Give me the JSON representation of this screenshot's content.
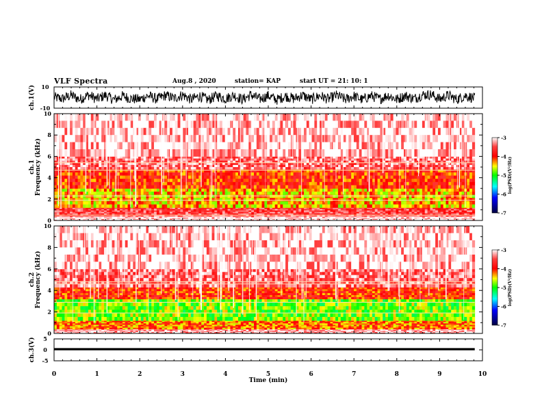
{
  "header": {
    "title": "VLF Spectra",
    "date": "Aug.8 , 2020",
    "station": "station= KAP",
    "start_ut": "start UT = 21: 10: 1"
  },
  "chart_data": [
    {
      "type": "line",
      "title": "ch.1(V)",
      "ylabel": "ch.1(V)",
      "xlim": [
        0,
        10
      ],
      "ylim": [
        -10,
        10
      ],
      "ytick_labels": [
        "10",
        "-10"
      ],
      "x_extent": [
        0,
        9.82
      ],
      "description_of_values": "noisy waveform, envelope roughly -6 to +8 V, dense oscillation",
      "series": [
        {
          "values": [
            [
              0.0,
              0.5
            ],
            [
              0.2,
              -3
            ],
            [
              0.4,
              6
            ],
            [
              0.6,
              -5
            ],
            [
              0.8,
              7
            ],
            [
              1.0,
              -4
            ],
            [
              1.2,
              6
            ],
            [
              1.4,
              -6
            ],
            [
              1.6,
              4
            ],
            [
              1.8,
              -3
            ],
            [
              2.0,
              -5
            ],
            [
              2.2,
              5
            ],
            [
              2.4,
              -4
            ],
            [
              2.6,
              6
            ],
            [
              2.8,
              -2
            ],
            [
              3.0,
              7
            ],
            [
              3.2,
              -5
            ],
            [
              3.4,
              4
            ],
            [
              3.6,
              -6
            ],
            [
              3.8,
              5
            ],
            [
              4.0,
              -3
            ],
            [
              4.2,
              6
            ],
            [
              4.4,
              -5
            ],
            [
              4.6,
              7
            ],
            [
              4.8,
              -4
            ],
            [
              5.0,
              5
            ],
            [
              5.2,
              -6
            ],
            [
              5.4,
              4
            ],
            [
              5.6,
              -3
            ],
            [
              5.8,
              6
            ],
            [
              6.0,
              -5
            ],
            [
              6.2,
              5
            ],
            [
              6.4,
              -4
            ],
            [
              6.6,
              6
            ],
            [
              6.8,
              -5
            ],
            [
              7.0,
              4
            ],
            [
              7.2,
              -6
            ],
            [
              7.4,
              5
            ],
            [
              7.6,
              -4
            ],
            [
              7.8,
              6
            ],
            [
              8.0,
              -5
            ],
            [
              8.2,
              5
            ],
            [
              8.4,
              -3
            ],
            [
              8.6,
              7
            ],
            [
              8.8,
              8
            ],
            [
              9.0,
              -4
            ],
            [
              9.2,
              6
            ],
            [
              9.4,
              -5
            ],
            [
              9.6,
              5
            ],
            [
              9.82,
              -2
            ]
          ]
        }
      ]
    },
    {
      "type": "heatmap",
      "title": "ch.1 Frequency (kHz)",
      "ylabel": "ch.1\nFrequency (kHz)",
      "xlim": [
        0,
        10
      ],
      "ylim": [
        0,
        10
      ],
      "yticks": [
        0,
        2,
        4,
        6,
        8,
        10
      ],
      "x_extent": [
        0,
        9.82
      ],
      "colorbar": {
        "label": "log(PSD)(V²/Hz)",
        "ticks": [
          -3,
          -4,
          -5,
          -6,
          -7
        ],
        "range": [
          -7,
          -3
        ]
      },
      "bands_log_psd": [
        {
          "freq_range": [
            0,
            0.4
          ],
          "value": -3.0
        },
        {
          "freq_range": [
            0.4,
            1.2
          ],
          "value": -3.6
        },
        {
          "freq_range": [
            1.2,
            3.0
          ],
          "value": -4.4
        },
        {
          "freq_range": [
            3.0,
            4.8
          ],
          "value": -4.0
        },
        {
          "freq_range": [
            4.8,
            6.0
          ],
          "value": -3.4
        },
        {
          "freq_range": [
            6.0,
            10.0
          ],
          "value": -3.1
        }
      ],
      "horizontal_lines_khz": [
        0.5,
        1.9,
        2.3,
        4.7,
        5.4
      ]
    },
    {
      "type": "heatmap",
      "title": "ch.2 Frequency (kHz)",
      "ylabel": "ch.2\nFrequency (kHz)",
      "xlim": [
        0,
        10
      ],
      "ylim": [
        0,
        10
      ],
      "yticks": [
        0,
        2,
        4,
        6,
        8,
        10
      ],
      "x_extent": [
        0,
        9.82
      ],
      "colorbar": {
        "label": "log(PSD)(V²/Hz)",
        "ticks": [
          -3,
          -4,
          -5,
          -6,
          -7
        ],
        "range": [
          -7,
          -3
        ]
      },
      "bands_log_psd": [
        {
          "freq_range": [
            0,
            0.4
          ],
          "value": -3.2
        },
        {
          "freq_range": [
            0.4,
            1.2
          ],
          "value": -4.2
        },
        {
          "freq_range": [
            1.2,
            3.2
          ],
          "value": -4.8
        },
        {
          "freq_range": [
            3.2,
            4.3
          ],
          "value": -4.0
        },
        {
          "freq_range": [
            4.3,
            6.0
          ],
          "value": -3.4
        },
        {
          "freq_range": [
            6.0,
            10.0
          ],
          "value": -3.1
        }
      ],
      "horizontal_lines_khz": [
        1.9,
        2.9,
        4.6,
        4.8
      ]
    },
    {
      "type": "line",
      "title": "ch.3(V)",
      "ylabel": "ch.3(V)",
      "xlim": [
        0,
        10
      ],
      "ylim": [
        -5,
        5
      ],
      "ytick_labels": [
        "5",
        "0",
        "-5"
      ],
      "x_extent": [
        0,
        9.82
      ],
      "series": [
        {
          "values": [
            [
              0.0,
              0.3
            ],
            [
              9.82,
              0.3
            ]
          ],
          "band": [
            -0.2,
            0.8
          ]
        }
      ]
    }
  ],
  "x_axis": {
    "label": "Time (min)",
    "tick_labels": [
      "0",
      "1",
      "2",
      "3",
      "4",
      "5",
      "6",
      "7",
      "8",
      "9",
      "10"
    ]
  }
}
